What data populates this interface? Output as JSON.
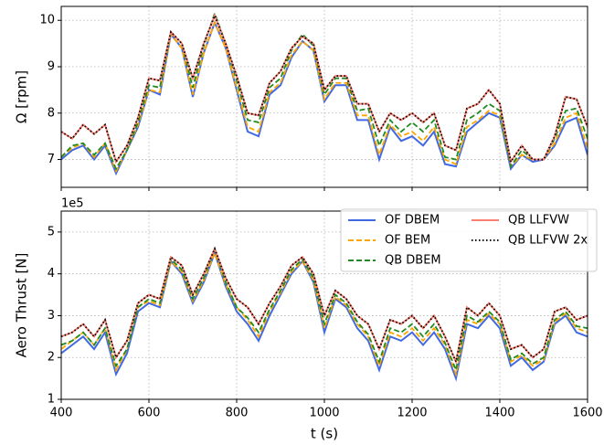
{
  "chart_data": [
    {
      "type": "line",
      "ylabel": "Ω [rpm]",
      "x": [
        400,
        425,
        450,
        475,
        500,
        525,
        550,
        575,
        600,
        625,
        650,
        675,
        700,
        725,
        750,
        775,
        800,
        825,
        850,
        875,
        900,
        925,
        950,
        975,
        1000,
        1025,
        1050,
        1075,
        1100,
        1125,
        1150,
        1175,
        1200,
        1225,
        1250,
        1275,
        1300,
        1325,
        1350,
        1375,
        1400,
        1425,
        1450,
        1475,
        1500,
        1525,
        1550,
        1575,
        1600
      ],
      "xlim": [
        400,
        1600
      ],
      "xticks": [
        400,
        600,
        800,
        1000,
        1200,
        1400,
        1600
      ],
      "ylim": [
        6.4,
        10.3
      ],
      "yticks": [
        7,
        8,
        9,
        10
      ],
      "grid": true,
      "series": [
        {
          "name": "OF DBEM",
          "color": "#4169e1",
          "linestyle": "solid",
          "values": [
            7.0,
            7.2,
            7.3,
            7.0,
            7.3,
            6.7,
            7.2,
            7.7,
            8.5,
            8.4,
            9.7,
            9.4,
            8.35,
            9.3,
            9.95,
            9.4,
            8.5,
            7.6,
            7.5,
            8.4,
            8.6,
            9.2,
            9.55,
            9.35,
            8.25,
            8.6,
            8.6,
            7.85,
            7.85,
            7.0,
            7.7,
            7.4,
            7.5,
            7.3,
            7.6,
            6.9,
            6.85,
            7.6,
            7.8,
            8.0,
            7.9,
            6.8,
            7.1,
            6.95,
            7.0,
            7.3,
            7.8,
            7.9,
            7.1
          ]
        },
        {
          "name": "OF BEM",
          "color": "#ffa500",
          "linestyle": "dashed",
          "values": [
            7.05,
            7.25,
            7.35,
            7.05,
            7.35,
            6.75,
            7.2,
            7.75,
            8.5,
            8.45,
            9.7,
            9.4,
            8.4,
            9.3,
            9.95,
            9.4,
            8.55,
            7.7,
            7.6,
            8.45,
            8.65,
            9.25,
            9.55,
            9.35,
            8.3,
            8.65,
            8.65,
            7.95,
            7.95,
            7.1,
            7.75,
            7.5,
            7.6,
            7.4,
            7.7,
            7.0,
            6.9,
            7.7,
            7.85,
            8.05,
            7.95,
            6.85,
            7.1,
            7.0,
            7.0,
            7.35,
            7.9,
            8.0,
            7.25
          ]
        },
        {
          "name": "QB DBEM",
          "color": "#228b22",
          "linestyle": "dashed",
          "values": [
            7.05,
            7.3,
            7.35,
            7.1,
            7.35,
            6.8,
            7.2,
            7.8,
            8.6,
            8.55,
            9.75,
            9.5,
            8.55,
            9.45,
            10.15,
            9.5,
            8.7,
            7.85,
            7.8,
            8.55,
            8.75,
            9.35,
            9.7,
            9.45,
            8.4,
            8.75,
            8.75,
            8.05,
            8.1,
            7.3,
            7.85,
            7.6,
            7.8,
            7.6,
            7.85,
            7.05,
            7.0,
            7.85,
            8.0,
            8.2,
            8.05,
            6.85,
            7.2,
            7.0,
            7.0,
            7.45,
            8.05,
            8.1,
            7.45
          ]
        },
        {
          "name": "QB LLFVW",
          "color": "#fa8072",
          "linestyle": "solid",
          "values": [
            7.6,
            7.45,
            7.75,
            7.55,
            7.75,
            6.95,
            7.3,
            7.9,
            8.75,
            8.7,
            9.75,
            9.5,
            8.75,
            9.5,
            10.1,
            9.5,
            8.8,
            8.0,
            7.95,
            8.65,
            8.9,
            9.4,
            9.65,
            9.5,
            8.5,
            8.8,
            8.8,
            8.2,
            8.2,
            7.6,
            8.0,
            7.85,
            8.0,
            7.8,
            8.0,
            7.3,
            7.2,
            8.1,
            8.2,
            8.5,
            8.2,
            6.95,
            7.3,
            7.0,
            7.0,
            7.5,
            8.35,
            8.3,
            7.7
          ]
        },
        {
          "name": "QB LLFVW 2x",
          "color": "#000000",
          "linestyle": "dotted",
          "values": [
            7.6,
            7.45,
            7.75,
            7.55,
            7.75,
            6.95,
            7.3,
            7.9,
            8.75,
            8.7,
            9.75,
            9.5,
            8.75,
            9.5,
            10.1,
            9.5,
            8.8,
            8.0,
            7.95,
            8.65,
            8.9,
            9.4,
            9.65,
            9.5,
            8.5,
            8.8,
            8.8,
            8.2,
            8.2,
            7.6,
            8.0,
            7.85,
            8.0,
            7.8,
            8.0,
            7.3,
            7.2,
            8.1,
            8.2,
            8.5,
            8.2,
            6.95,
            7.3,
            7.0,
            7.0,
            7.5,
            8.35,
            8.3,
            7.7
          ]
        }
      ]
    },
    {
      "type": "line",
      "ylabel": "Aero Thrust [N]",
      "y_offset_label": "1e5",
      "xlabel": "t (s)",
      "x": [
        400,
        425,
        450,
        475,
        500,
        525,
        550,
        575,
        600,
        625,
        650,
        675,
        700,
        725,
        750,
        775,
        800,
        825,
        850,
        875,
        900,
        925,
        950,
        975,
        1000,
        1025,
        1050,
        1075,
        1100,
        1125,
        1150,
        1175,
        1200,
        1225,
        1250,
        1275,
        1300,
        1325,
        1350,
        1375,
        1400,
        1425,
        1450,
        1475,
        1500,
        1525,
        1550,
        1575,
        1600
      ],
      "xlim": [
        400,
        1600
      ],
      "xticks": [
        400,
        600,
        800,
        1000,
        1200,
        1400,
        1600
      ],
      "ylim": [
        1,
        5.5
      ],
      "yticks": [
        1,
        2,
        3,
        4,
        5
      ],
      "grid": true,
      "legend": "upper right",
      "series": [
        {
          "name": "OF DBEM",
          "color": "#4169e1",
          "linestyle": "solid",
          "values": [
            2.1,
            2.3,
            2.5,
            2.2,
            2.6,
            1.6,
            2.1,
            3.1,
            3.3,
            3.2,
            4.3,
            4.0,
            3.3,
            3.8,
            4.5,
            3.7,
            3.1,
            2.8,
            2.4,
            3.0,
            3.5,
            4.0,
            4.3,
            3.8,
            2.6,
            3.4,
            3.2,
            2.7,
            2.4,
            1.7,
            2.5,
            2.4,
            2.6,
            2.3,
            2.6,
            2.2,
            1.5,
            2.8,
            2.7,
            3.0,
            2.7,
            1.8,
            2.0,
            1.7,
            1.9,
            2.8,
            3.0,
            2.6,
            2.5
          ]
        },
        {
          "name": "OF BEM",
          "color": "#ffa500",
          "linestyle": "dashed",
          "values": [
            2.2,
            2.4,
            2.6,
            2.3,
            2.7,
            1.7,
            2.2,
            3.2,
            3.35,
            3.25,
            4.3,
            4.05,
            3.35,
            3.85,
            4.5,
            3.75,
            3.2,
            2.9,
            2.5,
            3.1,
            3.55,
            4.05,
            4.3,
            3.85,
            2.7,
            3.45,
            3.25,
            2.8,
            2.5,
            1.8,
            2.6,
            2.5,
            2.7,
            2.4,
            2.7,
            2.3,
            1.6,
            2.9,
            2.8,
            3.05,
            2.8,
            1.9,
            2.05,
            1.8,
            1.95,
            2.85,
            3.05,
            2.7,
            2.6
          ]
        },
        {
          "name": "QB DBEM",
          "color": "#228b22",
          "linestyle": "dashed",
          "values": [
            2.3,
            2.4,
            2.6,
            2.3,
            2.7,
            1.8,
            2.2,
            3.2,
            3.4,
            3.3,
            4.35,
            4.1,
            3.4,
            3.9,
            4.6,
            3.8,
            3.2,
            2.95,
            2.6,
            3.15,
            3.6,
            4.1,
            4.35,
            3.9,
            2.8,
            3.5,
            3.3,
            2.85,
            2.55,
            1.9,
            2.7,
            2.6,
            2.8,
            2.5,
            2.8,
            2.35,
            1.7,
            3.0,
            2.85,
            3.1,
            2.85,
            1.95,
            2.1,
            1.85,
            2.0,
            2.9,
            3.1,
            2.75,
            2.7
          ]
        },
        {
          "name": "QB LLFVW",
          "color": "#fa8072",
          "linestyle": "solid",
          "values": [
            2.5,
            2.6,
            2.8,
            2.5,
            2.9,
            2.0,
            2.4,
            3.3,
            3.5,
            3.4,
            4.4,
            4.2,
            3.5,
            4.0,
            4.6,
            3.9,
            3.4,
            3.2,
            2.8,
            3.3,
            3.7,
            4.2,
            4.4,
            4.0,
            3.0,
            3.6,
            3.4,
            3.0,
            2.8,
            2.2,
            2.9,
            2.8,
            3.0,
            2.7,
            3.0,
            2.5,
            1.9,
            3.2,
            3.0,
            3.3,
            3.0,
            2.2,
            2.3,
            2.0,
            2.2,
            3.1,
            3.2,
            2.9,
            3.0
          ]
        },
        {
          "name": "QB LLFVW 2x",
          "color": "#000000",
          "linestyle": "dotted",
          "values": [
            2.5,
            2.6,
            2.8,
            2.5,
            2.9,
            2.0,
            2.4,
            3.3,
            3.5,
            3.4,
            4.4,
            4.2,
            3.5,
            4.0,
            4.6,
            3.9,
            3.4,
            3.2,
            2.8,
            3.3,
            3.7,
            4.2,
            4.4,
            4.0,
            3.0,
            3.6,
            3.4,
            3.0,
            2.8,
            2.2,
            2.9,
            2.8,
            3.0,
            2.7,
            3.0,
            2.5,
            1.9,
            3.2,
            3.0,
            3.3,
            3.0,
            2.2,
            2.3,
            2.0,
            2.2,
            3.1,
            3.2,
            2.9,
            3.0
          ]
        }
      ]
    }
  ]
}
